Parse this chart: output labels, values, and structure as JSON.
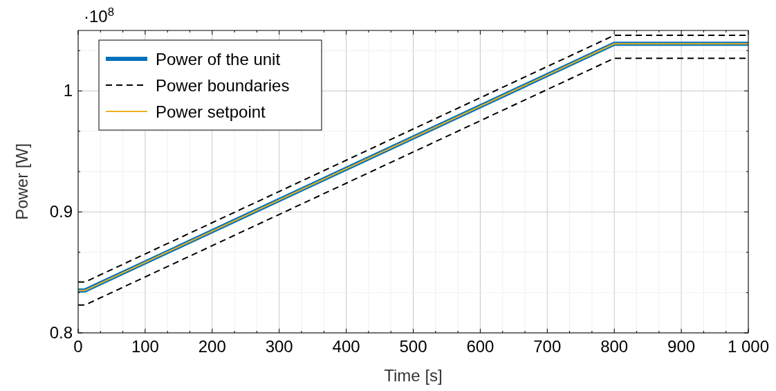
{
  "chart_data": {
    "type": "line",
    "xlabel": "Time [s]",
    "ylabel": "Power [W]",
    "annotations": [
      "·10$^{8}$"
    ],
    "xlim": [
      0,
      1000
    ],
    "ylim": [
      0.8,
      1.05
    ],
    "xticks": [
      0,
      {
        "value": 33.3,
        "label": null
      },
      {
        "value": 66.7,
        "label": null
      },
      100,
      {
        "value": 133.3,
        "label": null
      },
      {
        "value": 166.7,
        "label": null
      },
      200,
      {
        "value": 233.3,
        "label": null
      },
      {
        "value": 266.7,
        "label": null
      },
      300,
      {
        "value": 333.3,
        "label": null
      },
      {
        "value": 366.7,
        "label": null
      },
      400,
      {
        "value": 433.3,
        "label": null
      },
      {
        "value": 466.7,
        "label": null
      },
      500,
      {
        "value": 533.3,
        "label": null
      },
      {
        "value": 566.7,
        "label": null
      },
      600,
      {
        "value": 633.3,
        "label": null
      },
      {
        "value": 666.7,
        "label": null
      },
      700,
      {
        "value": 733.3,
        "label": null
      },
      {
        "value": 766.7,
        "label": null
      },
      800,
      {
        "value": 833.3,
        "label": null
      },
      {
        "value": 866.7,
        "label": null
      },
      900,
      {
        "value": 933.3,
        "label": null
      },
      {
        "value": 966.7,
        "label": null
      },
      {
        "value": 1000,
        "label": "1 000"
      }
    ],
    "yticks": [
      0.8,
      {
        "value": 0.8333,
        "label": null
      },
      {
        "value": 0.8667,
        "label": null
      },
      0.9,
      {
        "value": 0.9333,
        "label": null
      },
      {
        "value": 0.9667,
        "label": null
      },
      1,
      {
        "value": 1.0333,
        "label": null
      }
    ],
    "grid": true,
    "legend": "top left",
    "line_style": "solid",
    "x": [
      0,
      10,
      800,
      1000
    ],
    "series": [
      {
        "name": "Power of the unit",
        "color": "#0072bd",
        "values": [
          0.835,
          0.835,
          1.039,
          1.039
        ]
      },
      {
        "name": "Power boundaries",
        "color": "#000000",
        "line_style": "dashed",
        "values": [
          0.842,
          0.842,
          1.046,
          1.046
        ]
      },
      {
        "color": "#000000",
        "line_style": "dashed",
        "values": [
          0.823,
          0.823,
          1.027,
          1.027
        ]
      },
      {
        "name": "Power setpoint",
        "color": "#edb120",
        "values": [
          0.835,
          0.835,
          1.039,
          1.039
        ]
      }
    ]
  }
}
